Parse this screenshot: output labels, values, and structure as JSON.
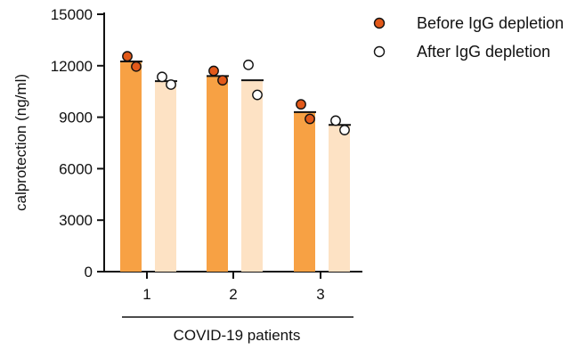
{
  "chart_data": {
    "type": "bar",
    "title": "",
    "ylabel": "calprotection (ng/ml)",
    "xlabel": "COVID-19 patients",
    "ylim": [
      0,
      15000
    ],
    "yticks": [
      0,
      3000,
      6000,
      9000,
      12000,
      15000
    ],
    "ytick_labels": [
      "0",
      "3000",
      "6000",
      "9000",
      "12000",
      "15000"
    ],
    "categories": [
      "1",
      "2",
      "3"
    ],
    "legend_position": "top-right",
    "series": [
      {
        "name": "Before IgG depletion",
        "color": "#f7a144",
        "marker_color": "#e2591a",
        "values": [
          12250,
          11400,
          9300
        ],
        "points": [
          [
            12550,
            11950
          ],
          [
            11700,
            11150
          ],
          [
            9750,
            8900
          ]
        ]
      },
      {
        "name": "After IgG depletion",
        "color": "#fde2c4",
        "marker_color": "#ffffff",
        "values": [
          11100,
          11150,
          8550
        ],
        "points": [
          [
            11350,
            10900
          ],
          [
            12050,
            10300
          ],
          [
            8800,
            8250
          ]
        ]
      }
    ]
  }
}
